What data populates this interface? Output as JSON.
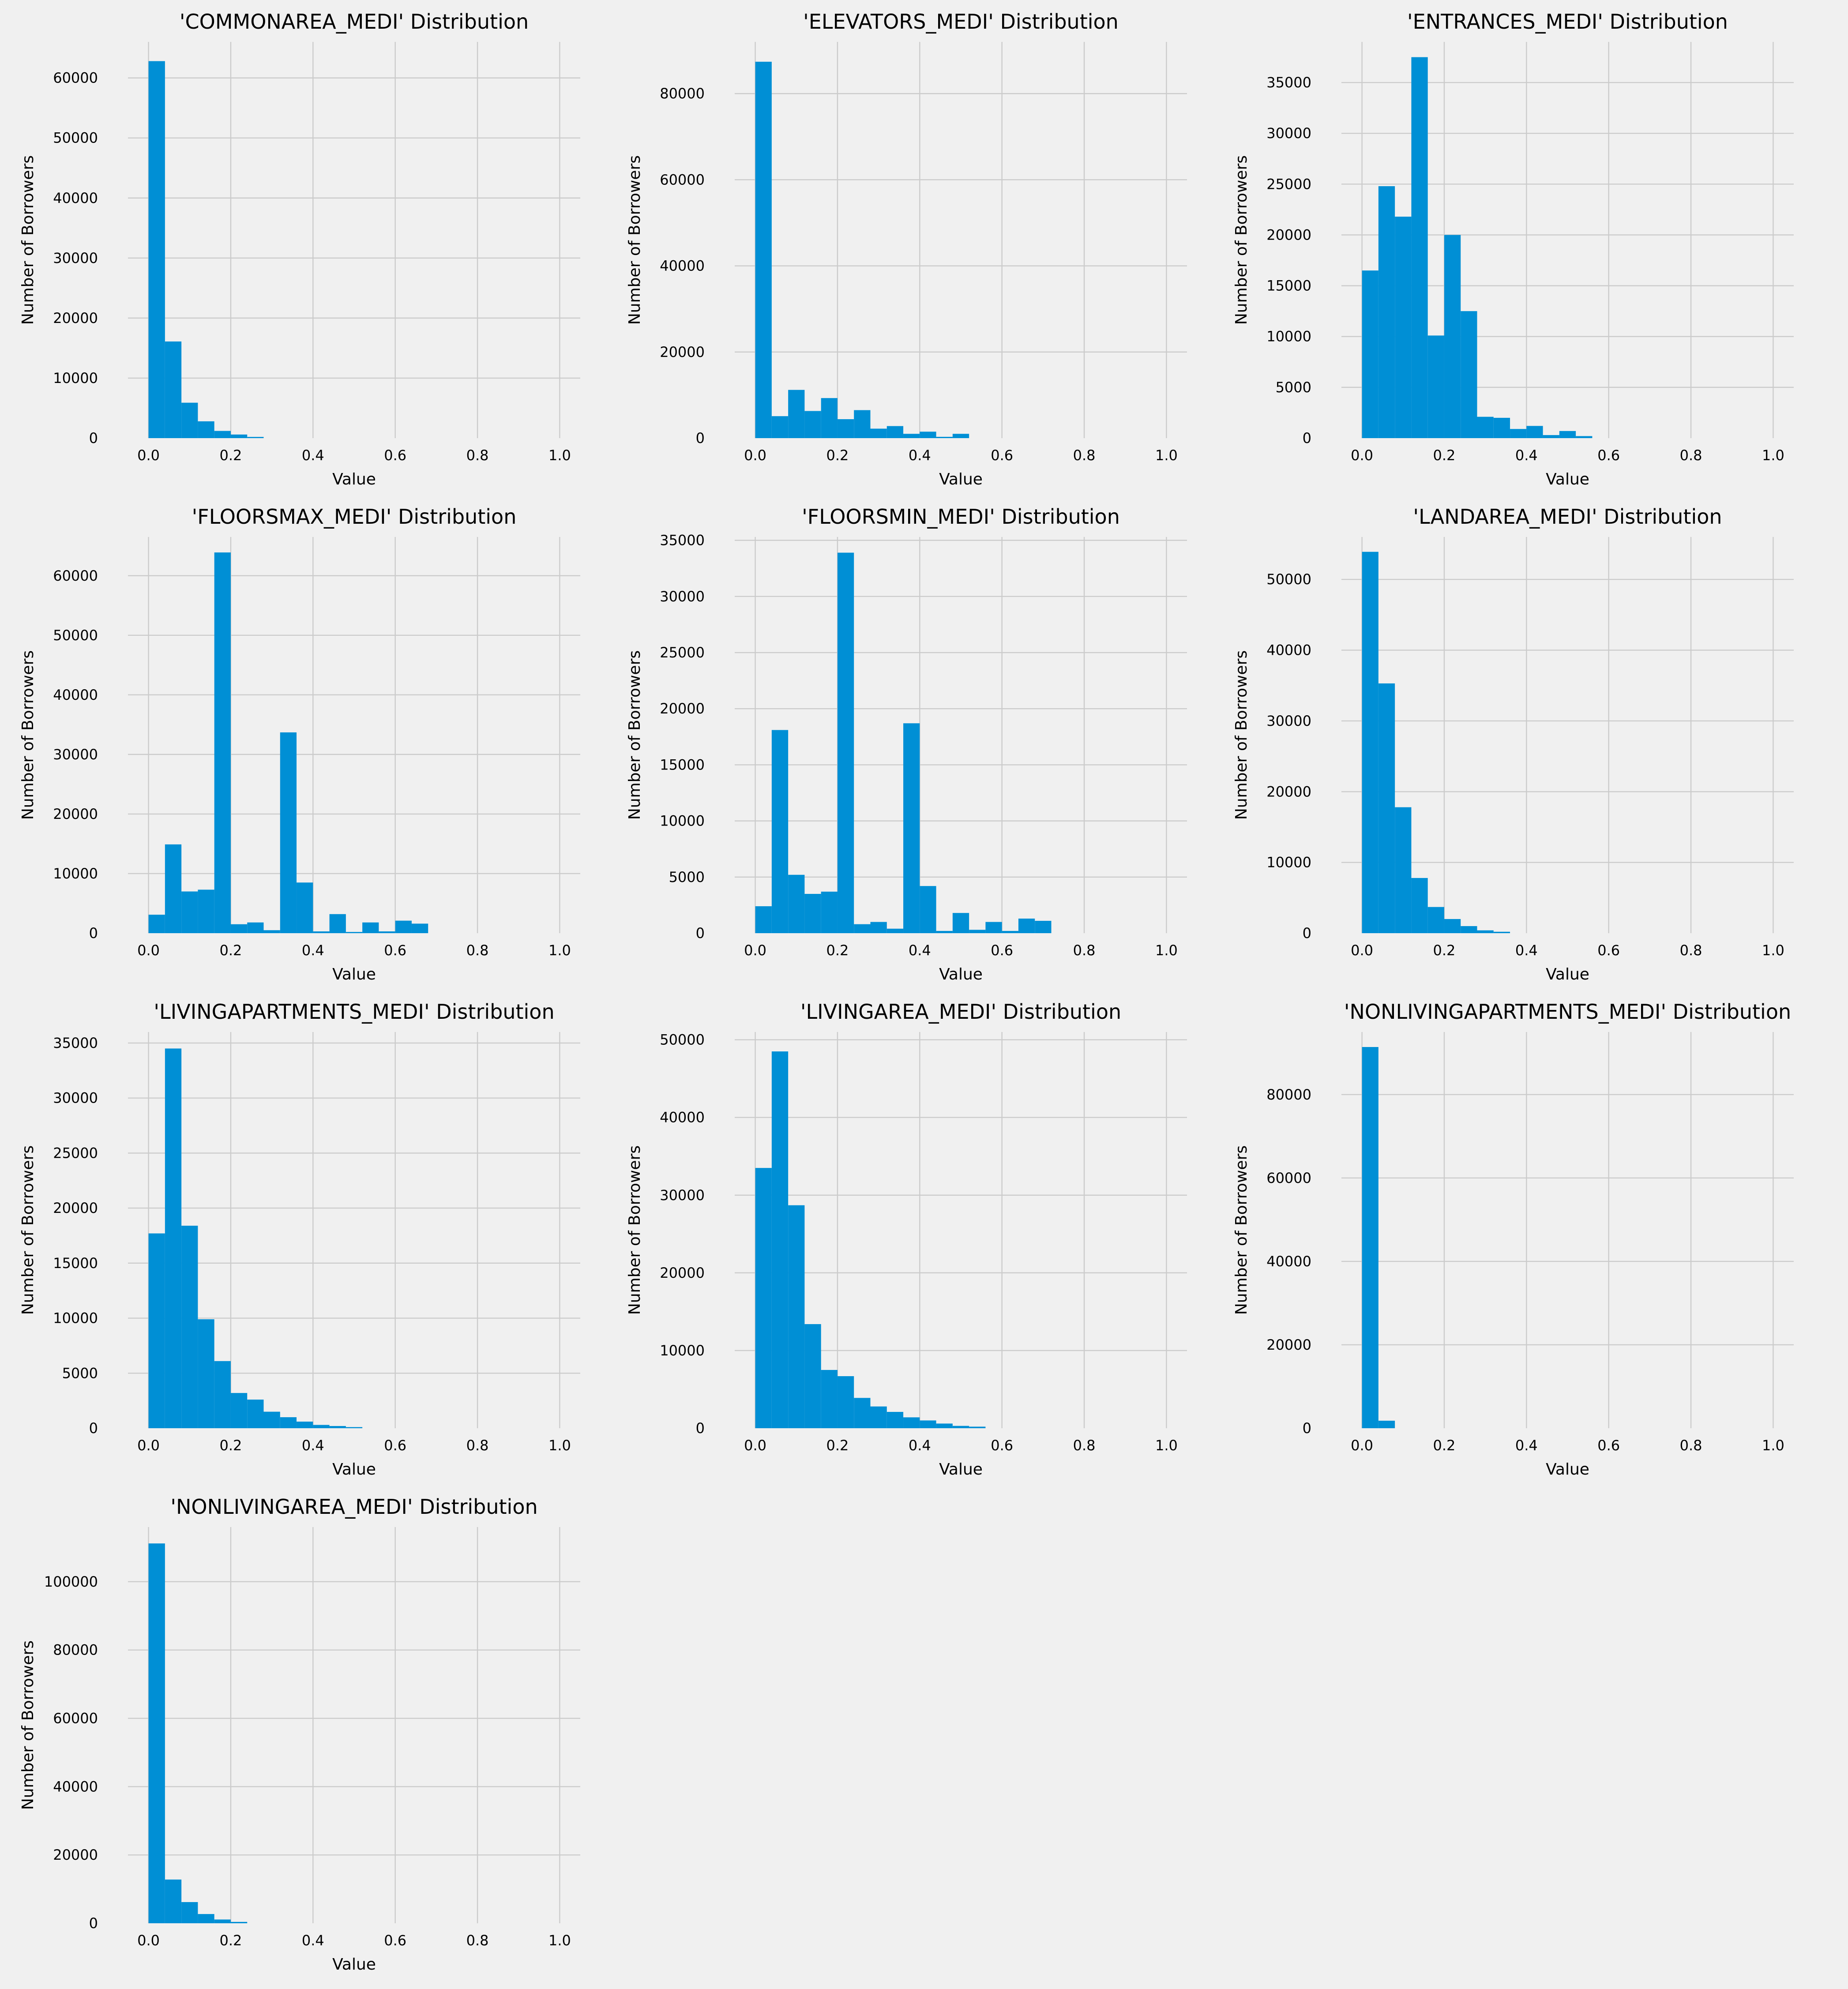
{
  "style": {
    "background": "#f0f0f0",
    "bar_color": "#008fd5",
    "grid_color": "#cbcbcb"
  },
  "chart_data": [
    {
      "type": "bar",
      "title": "'COMMONAREA_MEDI' Distribution",
      "xlabel": "Value",
      "ylabel": "Number of Borrowers",
      "bin_width": 0.04,
      "xlim": [
        -0.05,
        1.05
      ],
      "ylim": [
        0,
        66000
      ],
      "xticks": [
        0.0,
        0.2,
        0.4,
        0.6,
        0.8,
        1.0
      ],
      "xtick_labels": [
        "0.0",
        "0.2",
        "0.4",
        "0.6",
        "0.8",
        "1.0"
      ],
      "yticks": [
        0,
        10000,
        20000,
        30000,
        40000,
        50000,
        60000
      ],
      "ytick_labels": [
        "0",
        "10000",
        "20000",
        "30000",
        "40000",
        "50000",
        "60000"
      ],
      "bin_starts": [
        0,
        0.04,
        0.08,
        0.12,
        0.16,
        0.2,
        0.24
      ],
      "values": [
        62800,
        16100,
        5900,
        2800,
        1200,
        600,
        200
      ],
      "grid": true
    },
    {
      "type": "bar",
      "title": "'ELEVATORS_MEDI' Distribution",
      "xlabel": "Value",
      "ylabel": "Number of Borrowers",
      "bin_width": 0.04,
      "xlim": [
        -0.05,
        1.05
      ],
      "ylim": [
        0,
        92000
      ],
      "xticks": [
        0.0,
        0.2,
        0.4,
        0.6,
        0.8,
        1.0
      ],
      "xtick_labels": [
        "0.0",
        "0.2",
        "0.4",
        "0.6",
        "0.8",
        "1.0"
      ],
      "yticks": [
        0,
        20000,
        40000,
        60000,
        80000
      ],
      "ytick_labels": [
        "0",
        "20000",
        "40000",
        "60000",
        "80000"
      ],
      "bin_starts": [
        0,
        0.04,
        0.08,
        0.12,
        0.16,
        0.2,
        0.24,
        0.28,
        0.32,
        0.36,
        0.4,
        0.44,
        0.48
      ],
      "values": [
        87400,
        5100,
        11200,
        6300,
        9300,
        4400,
        6500,
        2200,
        2800,
        1000,
        1500,
        300,
        1000
      ],
      "grid": true
    },
    {
      "type": "bar",
      "title": "'ENTRANCES_MEDI' Distribution",
      "xlabel": "Value",
      "ylabel": "Number of Borrowers",
      "bin_width": 0.04,
      "xlim": [
        -0.05,
        1.05
      ],
      "ylim": [
        0,
        39000
      ],
      "xticks": [
        0.0,
        0.2,
        0.4,
        0.6,
        0.8,
        1.0
      ],
      "xtick_labels": [
        "0.0",
        "0.2",
        "0.4",
        "0.6",
        "0.8",
        "1.0"
      ],
      "yticks": [
        0,
        5000,
        10000,
        15000,
        20000,
        25000,
        30000,
        35000
      ],
      "ytick_labels": [
        "0",
        "5000",
        "10000",
        "15000",
        "20000",
        "25000",
        "30000",
        "35000"
      ],
      "bin_starts": [
        0,
        0.04,
        0.08,
        0.12,
        0.16,
        0.2,
        0.24,
        0.28,
        0.32,
        0.36,
        0.4,
        0.44,
        0.48,
        0.52
      ],
      "values": [
        16500,
        24800,
        21800,
        37500,
        10100,
        20000,
        12500,
        2100,
        2000,
        900,
        1200,
        300,
        700,
        200
      ],
      "grid": true
    },
    {
      "type": "bar",
      "title": "'FLOORSMAX_MEDI' Distribution",
      "xlabel": "Value",
      "ylabel": "Number of Borrowers",
      "bin_width": 0.04,
      "xlim": [
        -0.05,
        1.05
      ],
      "ylim": [
        0,
        66500
      ],
      "xticks": [
        0.0,
        0.2,
        0.4,
        0.6,
        0.8,
        1.0
      ],
      "xtick_labels": [
        "0.0",
        "0.2",
        "0.4",
        "0.6",
        "0.8",
        "1.0"
      ],
      "yticks": [
        0,
        10000,
        20000,
        30000,
        40000,
        50000,
        60000
      ],
      "ytick_labels": [
        "0",
        "10000",
        "20000",
        "30000",
        "40000",
        "50000",
        "60000"
      ],
      "bin_starts": [
        0,
        0.04,
        0.08,
        0.12,
        0.16,
        0.2,
        0.24,
        0.28,
        0.32,
        0.36,
        0.4,
        0.44,
        0.48,
        0.52,
        0.56,
        0.6,
        0.64
      ],
      "values": [
        3100,
        14900,
        7000,
        7300,
        63900,
        1500,
        1800,
        500,
        33700,
        8500,
        300,
        3200,
        200,
        1800,
        300,
        2100,
        1600
      ],
      "grid": true
    },
    {
      "type": "bar",
      "title": "'FLOORSMIN_MEDI' Distribution",
      "xlabel": "Value",
      "ylabel": "Number of Borrowers",
      "bin_width": 0.04,
      "xlim": [
        -0.05,
        1.05
      ],
      "ylim": [
        0,
        35300
      ],
      "xticks": [
        0.0,
        0.2,
        0.4,
        0.6,
        0.8,
        1.0
      ],
      "xtick_labels": [
        "0.0",
        "0.2",
        "0.4",
        "0.6",
        "0.8",
        "1.0"
      ],
      "yticks": [
        0,
        5000,
        10000,
        15000,
        20000,
        25000,
        30000,
        35000
      ],
      "ytick_labels": [
        "0",
        "5000",
        "10000",
        "15000",
        "20000",
        "25000",
        "30000",
        "35000"
      ],
      "bin_starts": [
        0,
        0.04,
        0.08,
        0.12,
        0.16,
        0.2,
        0.24,
        0.28,
        0.32,
        0.36,
        0.4,
        0.44,
        0.48,
        0.52,
        0.56,
        0.6,
        0.64,
        0.68
      ],
      "values": [
        2400,
        18100,
        5200,
        3500,
        3700,
        33900,
        800,
        1000,
        400,
        18700,
        4200,
        200,
        1800,
        300,
        1000,
        200,
        1300,
        1100
      ],
      "grid": true
    },
    {
      "type": "bar",
      "title": "'LANDAREA_MEDI' Distribution",
      "xlabel": "Value",
      "ylabel": "Number of Borrowers",
      "bin_width": 0.04,
      "xlim": [
        -0.05,
        1.05
      ],
      "ylim": [
        0,
        56000
      ],
      "xticks": [
        0.0,
        0.2,
        0.4,
        0.6,
        0.8,
        1.0
      ],
      "xtick_labels": [
        "0.0",
        "0.2",
        "0.4",
        "0.6",
        "0.8",
        "1.0"
      ],
      "yticks": [
        0,
        10000,
        20000,
        30000,
        40000,
        50000
      ],
      "ytick_labels": [
        "0",
        "10000",
        "20000",
        "30000",
        "40000",
        "50000"
      ],
      "bin_starts": [
        0,
        0.04,
        0.08,
        0.12,
        0.16,
        0.2,
        0.24,
        0.28,
        0.32
      ],
      "values": [
        53900,
        35300,
        17800,
        7800,
        3700,
        2000,
        1000,
        400,
        200
      ],
      "grid": true
    },
    {
      "type": "bar",
      "title": "'LIVINGAPARTMENTS_MEDI' Distribution",
      "xlabel": "Value",
      "ylabel": "Number of Borrowers",
      "bin_width": 0.04,
      "xlim": [
        -0.05,
        1.05
      ],
      "ylim": [
        0,
        36000
      ],
      "xticks": [
        0.0,
        0.2,
        0.4,
        0.6,
        0.8,
        1.0
      ],
      "xtick_labels": [
        "0.0",
        "0.2",
        "0.4",
        "0.6",
        "0.8",
        "1.0"
      ],
      "yticks": [
        0,
        5000,
        10000,
        15000,
        20000,
        25000,
        30000,
        35000
      ],
      "ytick_labels": [
        "0",
        "5000",
        "10000",
        "15000",
        "20000",
        "25000",
        "30000",
        "35000"
      ],
      "bin_starts": [
        0,
        0.04,
        0.08,
        0.12,
        0.16,
        0.2,
        0.24,
        0.28,
        0.32,
        0.36,
        0.4,
        0.44,
        0.48
      ],
      "values": [
        17700,
        34500,
        18400,
        9900,
        6100,
        3200,
        2600,
        1500,
        1000,
        600,
        300,
        200,
        100
      ],
      "grid": true
    },
    {
      "type": "bar",
      "title": "'LIVINGAREA_MEDI' Distribution",
      "xlabel": "Value",
      "ylabel": "Number of Borrowers",
      "bin_width": 0.04,
      "xlim": [
        -0.05,
        1.05
      ],
      "ylim": [
        0,
        51000
      ],
      "xticks": [
        0.0,
        0.2,
        0.4,
        0.6,
        0.8,
        1.0
      ],
      "xtick_labels": [
        "0.0",
        "0.2",
        "0.4",
        "0.6",
        "0.8",
        "1.0"
      ],
      "yticks": [
        0,
        10000,
        20000,
        30000,
        40000,
        50000
      ],
      "ytick_labels": [
        "0",
        "10000",
        "20000",
        "30000",
        "40000",
        "50000"
      ],
      "bin_starts": [
        0,
        0.04,
        0.08,
        0.12,
        0.16,
        0.2,
        0.24,
        0.28,
        0.32,
        0.36,
        0.4,
        0.44,
        0.48,
        0.52
      ],
      "values": [
        33500,
        48500,
        28700,
        13400,
        7500,
        6700,
        3900,
        2800,
        2100,
        1400,
        1000,
        600,
        300,
        200
      ],
      "grid": true
    },
    {
      "type": "bar",
      "title": "'NONLIVINGAPARTMENTS_MEDI' Distribution",
      "xlabel": "Value",
      "ylabel": "Number of Borrowers",
      "bin_width": 0.04,
      "xlim": [
        -0.05,
        1.05
      ],
      "ylim": [
        0,
        95000
      ],
      "xticks": [
        0.0,
        0.2,
        0.4,
        0.6,
        0.8,
        1.0
      ],
      "xtick_labels": [
        "0.0",
        "0.2",
        "0.4",
        "0.6",
        "0.8",
        "1.0"
      ],
      "yticks": [
        0,
        20000,
        40000,
        60000,
        80000
      ],
      "ytick_labels": [
        "0",
        "20000",
        "40000",
        "60000",
        "80000"
      ],
      "bin_starts": [
        0,
        0.04
      ],
      "values": [
        91400,
        1800
      ],
      "grid": true
    },
    {
      "type": "bar",
      "title": "'NONLIVINGAREA_MEDI' Distribution",
      "xlabel": "Value",
      "ylabel": "Number of Borrowers",
      "bin_width": 0.04,
      "xlim": [
        -0.05,
        1.05
      ],
      "ylim": [
        0,
        116000
      ],
      "xticks": [
        0.0,
        0.2,
        0.4,
        0.6,
        0.8,
        1.0
      ],
      "xtick_labels": [
        "0.0",
        "0.2",
        "0.4",
        "0.6",
        "0.8",
        "1.0"
      ],
      "yticks": [
        0,
        20000,
        40000,
        60000,
        80000,
        100000
      ],
      "ytick_labels": [
        "0",
        "20000",
        "40000",
        "60000",
        "80000",
        "100000"
      ],
      "bin_starts": [
        0,
        0.04,
        0.08,
        0.12,
        0.16,
        0.2
      ],
      "values": [
        111200,
        12800,
        6200,
        2700,
        1100,
        400
      ],
      "grid": true
    }
  ]
}
